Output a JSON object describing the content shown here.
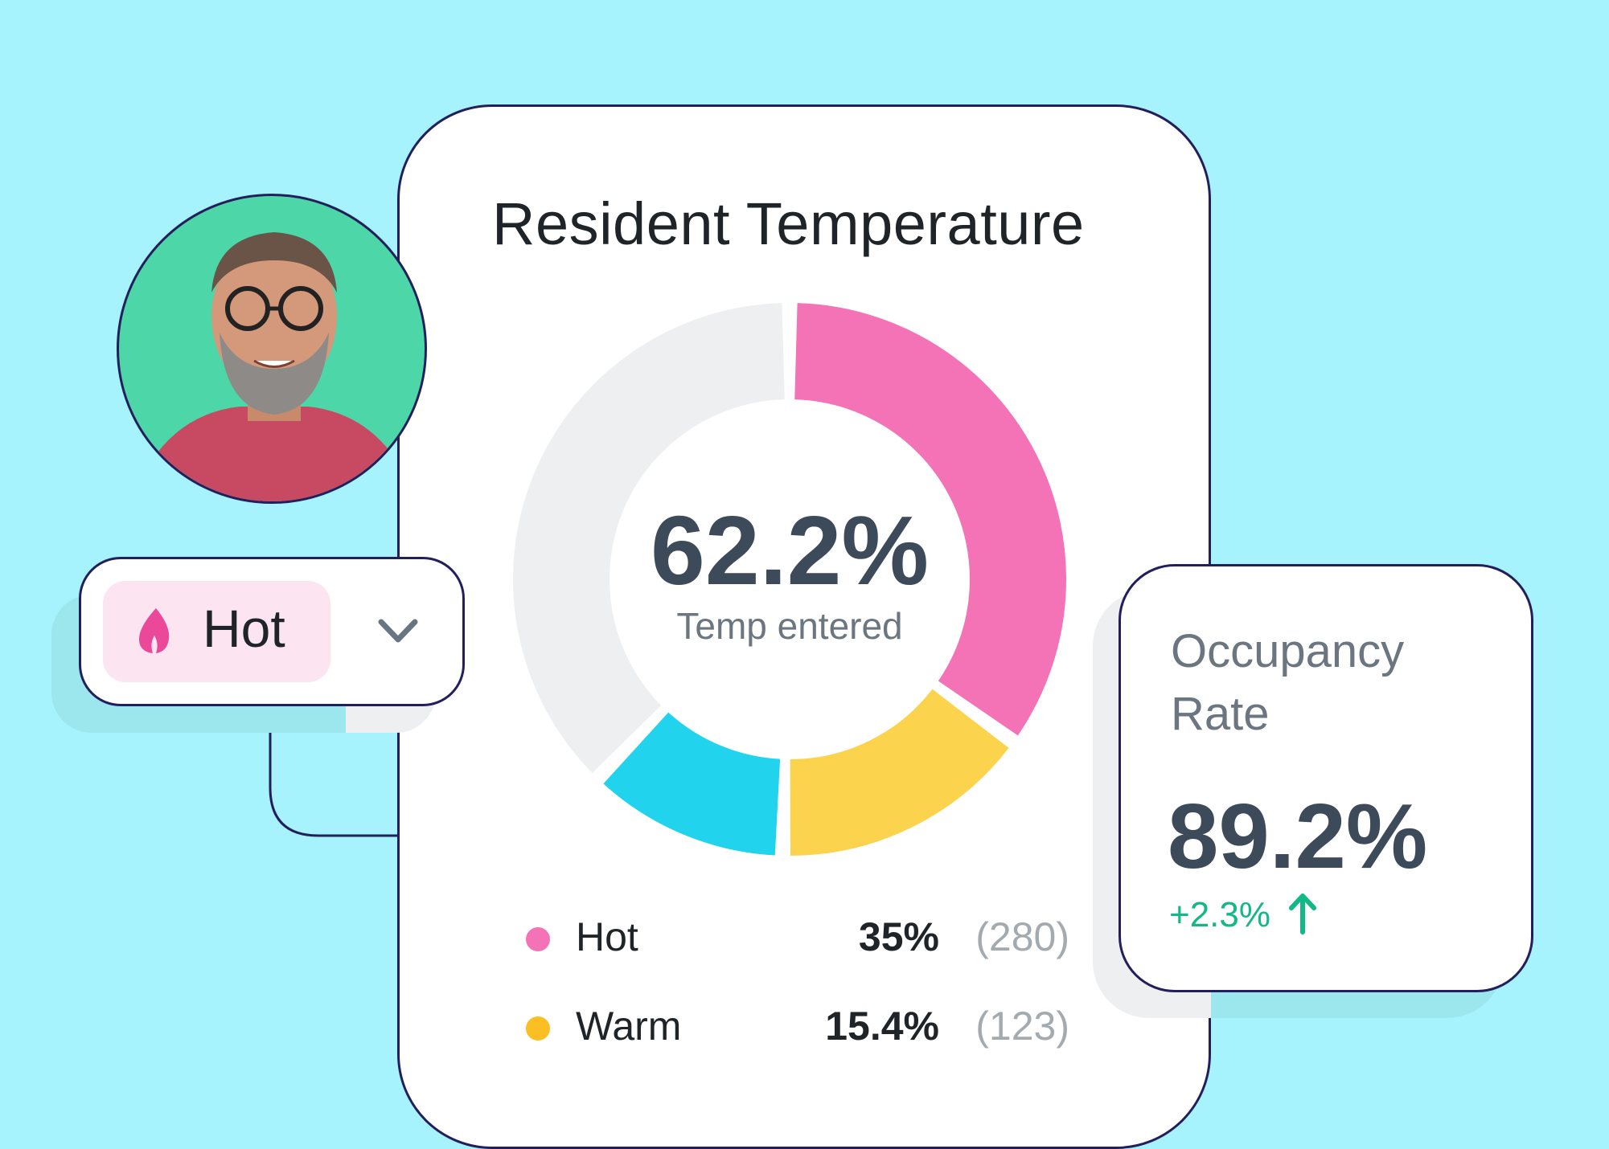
{
  "card": {
    "title": "Resident Temperature"
  },
  "chart_data": {
    "type": "pie",
    "subtype": "donut",
    "center_value": "62.2%",
    "center_label": "Temp entered",
    "slices": [
      {
        "name": "Hot",
        "percent": 35,
        "count": 280,
        "color": "#f472b6"
      },
      {
        "name": "Warm",
        "percent": 15.4,
        "count": 123,
        "color": "#fcd34d"
      },
      {
        "name": "",
        "percent": 11.8,
        "color": "#22d3ee"
      },
      {
        "name": "",
        "percent": 37.8,
        "color": "#eeeff0"
      }
    ]
  },
  "legend": [
    {
      "name": "Hot",
      "percent": "35%",
      "count": "(280)",
      "color": "#f472b6"
    },
    {
      "name": "Warm",
      "percent": "15.4%",
      "count": "(123)",
      "color": "#fbbf24"
    }
  ],
  "dropdown": {
    "selected": "Hot",
    "icon": "flame-icon",
    "chevron": "chevron-down-icon"
  },
  "occupancy": {
    "title": "Occupancy Rate",
    "value": "89.2%",
    "delta": "+2.3%",
    "trend_icon": "arrow-up-icon",
    "delta_color": "#12b886"
  },
  "colors": {
    "background": "#a6f2fd",
    "border": "#231f5c",
    "avatar_bg": "#4dd6a8"
  }
}
